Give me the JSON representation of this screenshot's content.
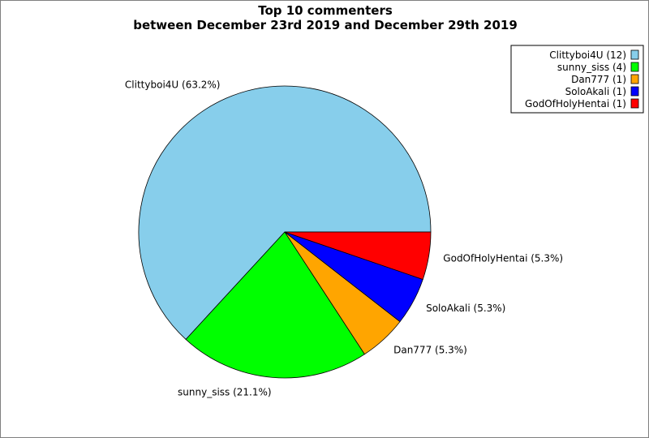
{
  "chart_data": {
    "type": "pie",
    "title": "Top 10 commenters",
    "subtitle": "between December 23rd 2019 and December 29th 2019",
    "legend_position": "top-right",
    "slices": [
      {
        "name": "Clittyboi4U",
        "count": 12,
        "percent": 63.2,
        "color": "#87ceeb",
        "label": "Clittyboi4U (63.2%)",
        "legend_label": "Clittyboi4U (12)"
      },
      {
        "name": "sunny_siss",
        "count": 4,
        "percent": 21.1,
        "color": "#00ff00",
        "label": "sunny_siss (21.1%)",
        "legend_label": "sunny_siss (4)"
      },
      {
        "name": "Dan777",
        "count": 1,
        "percent": 5.3,
        "color": "#ffa500",
        "label": "Dan777 (5.3%)",
        "legend_label": "Dan777 (1)"
      },
      {
        "name": "SoloAkali",
        "count": 1,
        "percent": 5.3,
        "color": "#0000ff",
        "label": "SoloAkali (5.3%)",
        "legend_label": "SoloAkali (1)"
      },
      {
        "name": "GodOfHolyHentai",
        "count": 1,
        "percent": 5.3,
        "color": "#ff0000",
        "label": "GodOfHolyHentai (5.3%)",
        "legend_label": "GodOfHolyHentai (1)"
      }
    ]
  }
}
